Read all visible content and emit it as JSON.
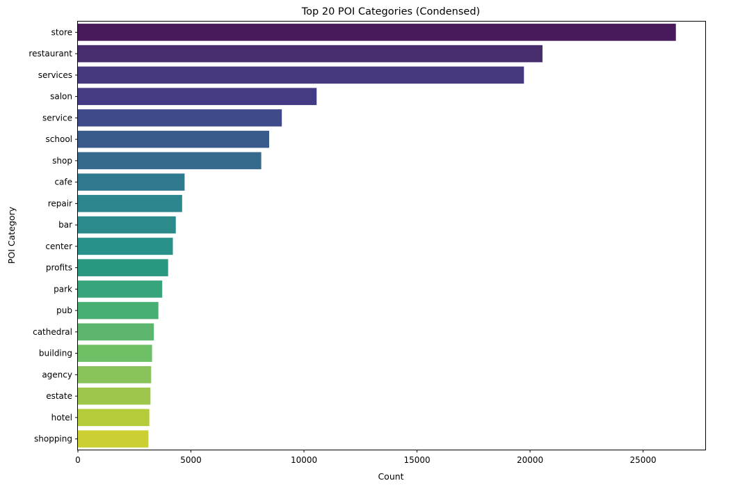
{
  "chart_data": {
    "type": "bar",
    "orientation": "horizontal",
    "title": "Top 20 POI Categories (Condensed)",
    "xlabel": "Count",
    "ylabel": "POI Category",
    "xlim": [
      0,
      27750
    ],
    "xticks": [
      0,
      5000,
      10000,
      15000,
      20000,
      25000
    ],
    "grid": false,
    "legend": "none",
    "categories": [
      "store",
      "restaurant",
      "services",
      "salon",
      "service",
      "school",
      "shop",
      "cafe",
      "repair",
      "bar",
      "center",
      "profits",
      "park",
      "pub",
      "cathedral",
      "building",
      "agency",
      "estate",
      "hotel",
      "shopping"
    ],
    "values": [
      26450,
      20550,
      19730,
      10560,
      9020,
      8460,
      8110,
      4720,
      4610,
      4330,
      4200,
      3990,
      3730,
      3560,
      3360,
      3280,
      3240,
      3210,
      3160,
      3120
    ],
    "colors": [
      "#481a5b",
      "#482d6c",
      "#47397b",
      "#433c84",
      "#3e4a89",
      "#3a5a8c",
      "#356a8d",
      "#2f7a8e",
      "#2c868e",
      "#2a8b8a",
      "#28918a",
      "#2a9880",
      "#38a47b",
      "#48af72",
      "#5db66f",
      "#6fbf66",
      "#8ac25c",
      "#9ec64c",
      "#b5cb39",
      "#cccf34"
    ]
  }
}
